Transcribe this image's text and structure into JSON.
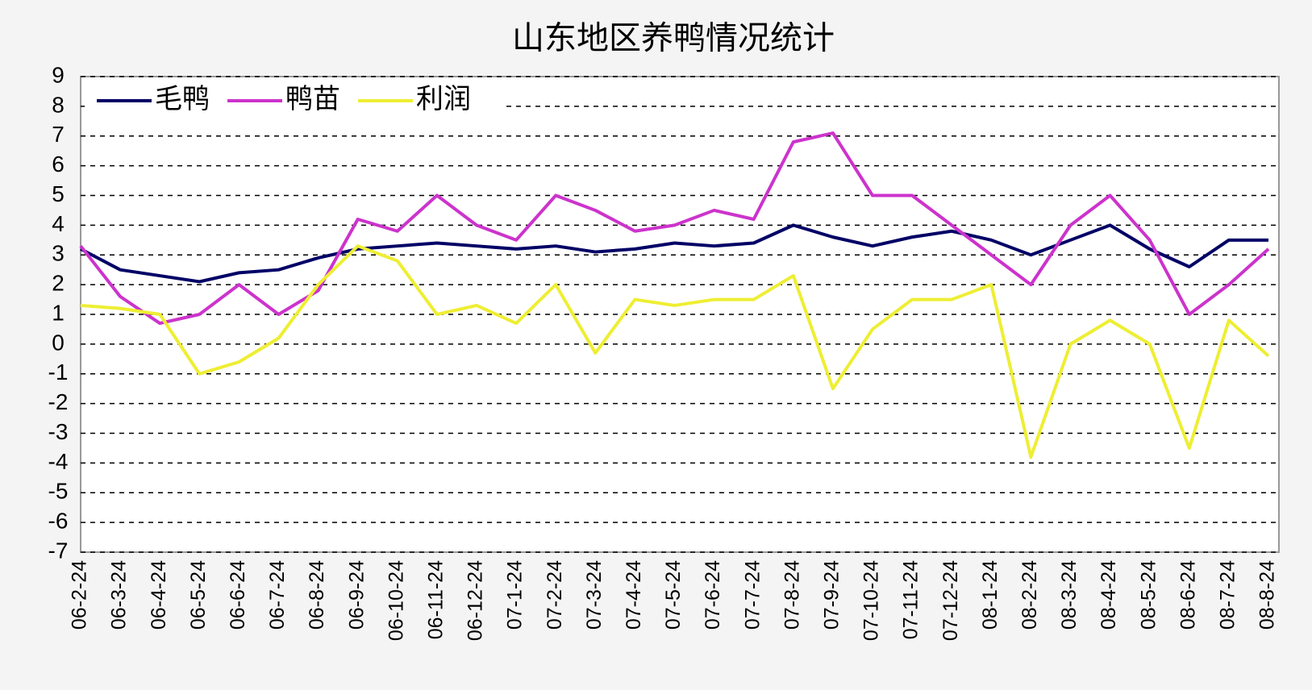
{
  "chart_data": {
    "type": "line",
    "title": "山东地区养鸭情况统计",
    "categories": [
      "06-2-24",
      "06-3-24",
      "06-4-24",
      "06-5-24",
      "06-6-24",
      "06-7-24",
      "06-8-24",
      "06-9-24",
      "06-10-24",
      "06-11-24",
      "06-12-24",
      "07-1-24",
      "07-2-24",
      "07-3-24",
      "07-4-24",
      "07-5-24",
      "07-6-24",
      "07-7-24",
      "07-8-24",
      "07-9-24",
      "07-10-24",
      "07-11-24",
      "07-12-24",
      "08-1-24",
      "08-2-24",
      "08-3-24",
      "08-4-24",
      "08-5-24",
      "08-6-24",
      "08-7-24",
      "08-8-24"
    ],
    "series": [
      {
        "name": "毛鸭",
        "color": "#000066",
        "values": [
          3.2,
          2.5,
          2.3,
          2.1,
          2.4,
          2.5,
          2.9,
          3.2,
          3.3,
          3.4,
          3.3,
          3.2,
          3.3,
          3.1,
          3.2,
          3.4,
          3.3,
          3.4,
          4.0,
          3.6,
          3.3,
          3.6,
          3.8,
          3.5,
          3.0,
          3.5,
          4.0,
          3.2,
          2.6,
          3.5,
          3.5
        ]
      },
      {
        "name": "鸭苗",
        "color": "#cc33cc",
        "values": [
          3.3,
          1.6,
          0.7,
          1.0,
          2.0,
          1.0,
          1.8,
          4.2,
          3.8,
          5.0,
          4.0,
          3.5,
          5.0,
          4.5,
          3.8,
          4.0,
          4.5,
          4.2,
          6.8,
          7.1,
          5.0,
          5.0,
          4.0,
          3.0,
          2.0,
          4.0,
          5.0,
          3.5,
          1.0,
          2.0,
          3.2
        ]
      },
      {
        "name": "利润",
        "color": "#eeee33",
        "values": [
          1.3,
          1.2,
          1.0,
          -1.0,
          -0.6,
          0.2,
          2.0,
          3.3,
          2.8,
          1.0,
          1.3,
          0.7,
          2.0,
          -0.3,
          1.5,
          1.3,
          1.5,
          1.5,
          2.3,
          -1.5,
          0.5,
          1.5,
          1.5,
          2.0,
          -3.8,
          0,
          0.8,
          0,
          -3.5,
          0.8,
          -0.4
        ]
      }
    ],
    "ylim": [
      -7,
      9
    ],
    "yticks": [
      -7,
      -6,
      -5,
      -4,
      -3,
      -2,
      -1,
      0,
      1,
      2,
      3,
      4,
      5,
      6,
      7,
      8,
      9
    ],
    "grid": true,
    "legend": "upper left"
  }
}
